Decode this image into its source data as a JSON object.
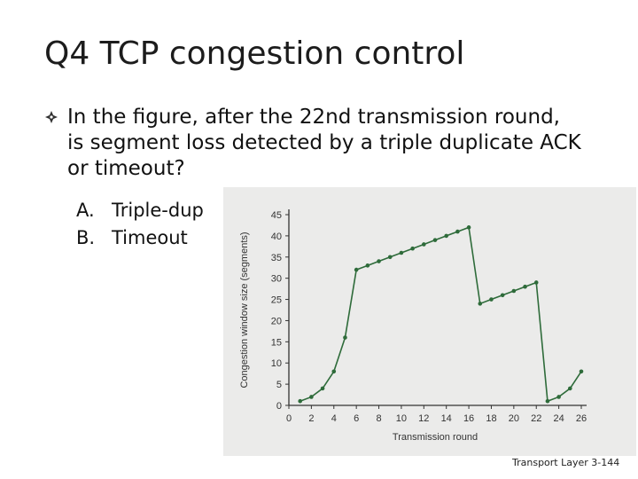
{
  "slide": {
    "title": "Q4 TCP congestion control",
    "question": "In the figure, after the 22nd transmission round, is segment loss detected by a triple duplicate ACK or timeout?",
    "bullet_icon": "diamond-bullet-icon",
    "options": [
      {
        "letter": "A.",
        "text": "Triple-dup"
      },
      {
        "letter": "B.",
        "text": "Timeout"
      }
    ],
    "footer": "Transport Layer 3-144"
  },
  "chart_data": {
    "type": "line",
    "title": "",
    "xlabel": "Transmission round",
    "ylabel": "Congestion window size (segments)",
    "xlim": [
      0,
      26
    ],
    "ylim": [
      0,
      45
    ],
    "xticks": [
      0,
      2,
      4,
      6,
      8,
      10,
      12,
      14,
      16,
      18,
      20,
      22,
      24,
      26
    ],
    "yticks": [
      0,
      5,
      10,
      15,
      20,
      25,
      30,
      35,
      40,
      45
    ],
    "grid": false,
    "line_color": "#2e6b3a",
    "series": [
      {
        "x": [
          1,
          2,
          3,
          4,
          5,
          6,
          7,
          8,
          9,
          10,
          11,
          12,
          13,
          14,
          15,
          16,
          17,
          18,
          19,
          20,
          21,
          22,
          23,
          24,
          25,
          26
        ],
        "values": [
          1,
          2,
          4,
          8,
          16,
          32,
          33,
          34,
          35,
          36,
          37,
          38,
          39,
          40,
          41,
          42,
          24,
          25,
          26,
          27,
          28,
          29,
          1,
          2,
          4,
          8
        ]
      }
    ]
  }
}
